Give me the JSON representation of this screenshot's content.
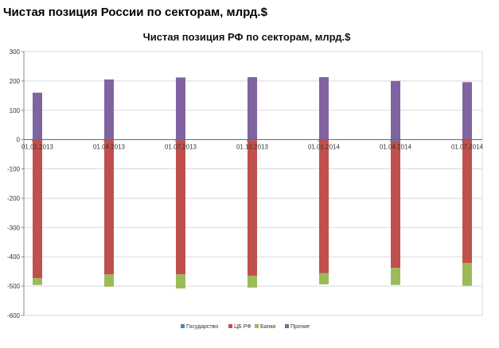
{
  "page": {
    "title": "Чистая позиция России по секторам, млрд.$"
  },
  "chart_data": {
    "type": "bar",
    "stacked": true,
    "title": "Чистая позиция РФ по секторам, млрд.$",
    "categories": [
      "01.01.2013",
      "01.04.2013",
      "01.07.2013",
      "01.10.2013",
      "01.01.2014",
      "01.04.2014",
      "01.07.2014"
    ],
    "ylim": [
      -600,
      300
    ],
    "yticks": [
      300,
      200,
      100,
      0,
      -100,
      -200,
      -300,
      -400,
      -500,
      -600
    ],
    "grid": true,
    "legend_position": "bottom",
    "series": [
      {
        "name": "Государство",
        "color": "#4f81bd",
        "values": [
          -1,
          -1,
          -2,
          -2,
          -1,
          -5,
          -1
        ]
      },
      {
        "name": "ЦБ РФ",
        "color": "#c0504d",
        "values": [
          -472,
          -459,
          -458,
          -463,
          -455,
          -433,
          -420
        ]
      },
      {
        "name": "Банки",
        "color": "#9bbb59",
        "values": [
          -23,
          -42,
          -48,
          -40,
          -38,
          -58,
          -78
        ]
      },
      {
        "name": "Прочие",
        "color": "#8064a2",
        "values": [
          160,
          205,
          212,
          213,
          213,
          200,
          196
        ]
      }
    ]
  }
}
